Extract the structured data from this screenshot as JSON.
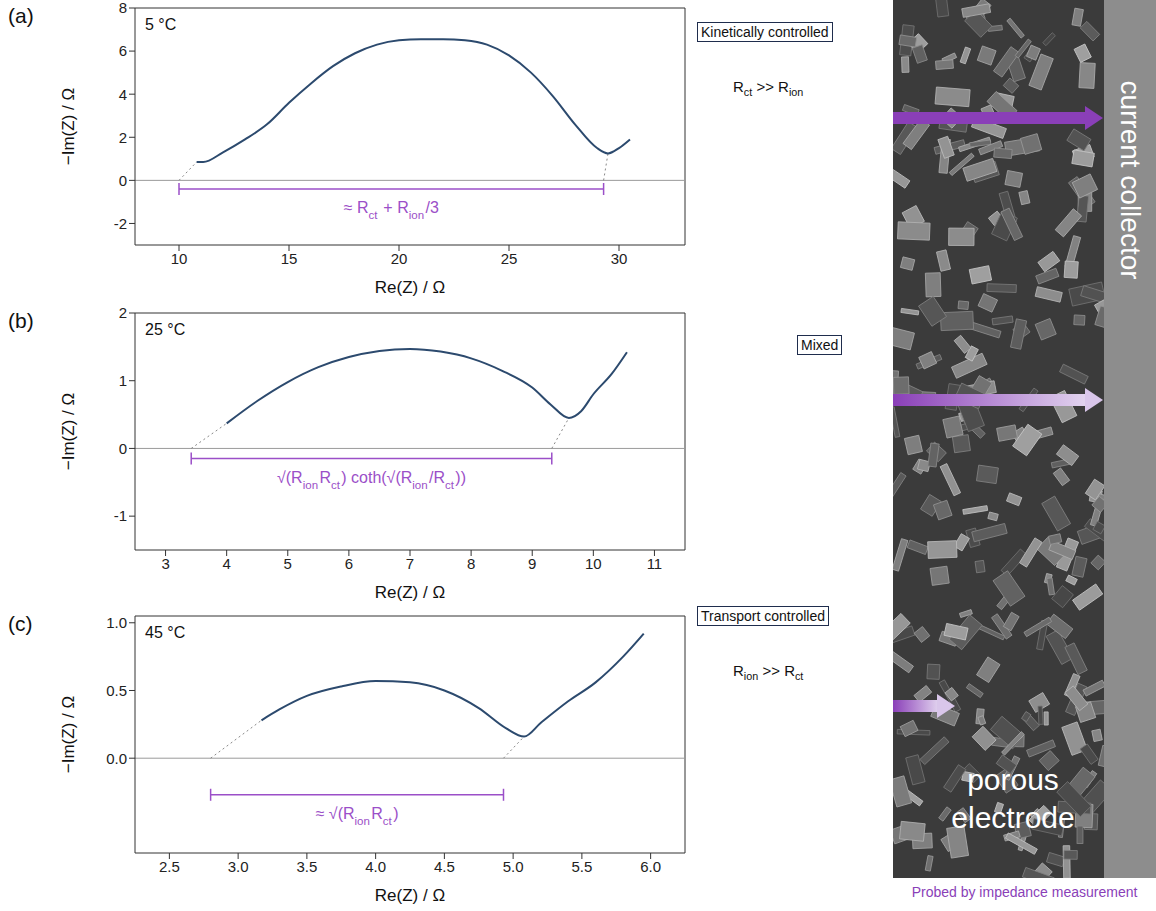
{
  "chart_data": [
    {
      "type": "line",
      "panel": "(a)",
      "annotation": "5 °C",
      "regime": "Kinetically controlled",
      "condition": "Rct >> Rion",
      "x_label": "Re(Z) / Ω",
      "y_label": "−Im(Z) / Ω",
      "color": "#2c4a6e",
      "x": [
        10.8,
        11.1,
        12,
        13,
        14,
        15,
        16,
        17,
        18,
        19,
        20,
        21,
        22,
        23,
        24,
        25,
        26,
        27,
        28,
        29,
        29.5,
        30,
        30.5
      ],
      "values": [
        0.85,
        0.85,
        1.3,
        1.9,
        2.6,
        3.6,
        4.5,
        5.3,
        5.9,
        6.3,
        6.5,
        6.55,
        6.55,
        6.5,
        6.3,
        5.8,
        5.0,
        3.9,
        2.6,
        1.5,
        1.25,
        1.5,
        1.9
      ],
      "xlim": [
        8,
        33
      ],
      "xticks": [
        10,
        15,
        20,
        25,
        30
      ],
      "ylim": [
        -3,
        8
      ],
      "yticks": [
        -2,
        0,
        2,
        4,
        6,
        8
      ],
      "reference_line": 0,
      "extrapolations": [
        [
          [
            10,
            0
          ],
          [
            10.8,
            0.85
          ]
        ],
        [
          [
            29.3,
            0
          ],
          [
            29.5,
            1.25
          ]
        ]
      ],
      "bracket": {
        "x": [
          10,
          29.3
        ],
        "y": -0.4,
        "label": "≈ Rct + Rion/3",
        "color": "#9b4fc8"
      }
    },
    {
      "type": "line",
      "panel": "(b)",
      "annotation": "25 °C",
      "regime": "Mixed",
      "x_label": "Re(Z) / Ω",
      "y_label": "−Im(Z) / Ω",
      "color": "#2c4a6e",
      "x": [
        4,
        4.5,
        5,
        5.5,
        6,
        6.5,
        7,
        7.5,
        8,
        8.5,
        9,
        9.3,
        9.6,
        9.8,
        10,
        10.3,
        10.55
      ],
      "values": [
        0.37,
        0.7,
        0.98,
        1.2,
        1.35,
        1.44,
        1.47,
        1.43,
        1.33,
        1.15,
        0.9,
        0.65,
        0.45,
        0.55,
        0.8,
        1.1,
        1.42
      ],
      "xlim": [
        2.5,
        11.5
      ],
      "xticks": [
        3,
        4,
        5,
        6,
        7,
        8,
        9,
        10,
        11
      ],
      "ylim": [
        -1.5,
        2
      ],
      "yticks": [
        -1,
        0,
        1,
        2
      ],
      "reference_line": 0,
      "extrapolations": [
        [
          [
            3.42,
            0
          ],
          [
            4,
            0.37
          ]
        ],
        [
          [
            9.32,
            0
          ],
          [
            9.6,
            0.45
          ]
        ]
      ],
      "bracket": {
        "x": [
          3.42,
          9.32
        ],
        "y": -0.15,
        "label": "√(RionRct) coth(√(Rion/Rct))",
        "color": "#9b4fc8"
      }
    },
    {
      "type": "line",
      "panel": "(c)",
      "annotation": "45 °C",
      "regime": "Transport controlled",
      "condition": "Rion >> Rct",
      "x_label": "Re(Z) / Ω",
      "y_label": "−Im(Z) / Ω",
      "color": "#2c4a6e",
      "x": [
        3.17,
        3.3,
        3.5,
        3.75,
        4.0,
        4.25,
        4.5,
        4.75,
        4.95,
        5.08,
        5.2,
        5.4,
        5.6,
        5.8,
        5.95
      ],
      "values": [
        0.28,
        0.36,
        0.46,
        0.53,
        0.57,
        0.56,
        0.5,
        0.37,
        0.22,
        0.16,
        0.26,
        0.42,
        0.56,
        0.75,
        0.92
      ],
      "xlim": [
        2.25,
        6.25
      ],
      "xticks": [
        2.5,
        {
          "value": 3,
          "label": "3.0"
        },
        3.5,
        {
          "value": 4,
          "label": "4.0"
        },
        4.5,
        {
          "value": 5,
          "label": "5.0"
        },
        5.5,
        {
          "value": 6,
          "label": "6.0"
        }
      ],
      "ylim": [
        -0.7,
        1.05
      ],
      "yticks": [
        {
          "value": 0,
          "label": "0.0"
        },
        0.5,
        {
          "value": 1,
          "label": "1.0"
        }
      ],
      "reference_line": 0,
      "extrapolations": [
        [
          [
            2.8,
            0
          ],
          [
            3.17,
            0.28
          ]
        ],
        [
          [
            4.93,
            0
          ],
          [
            5.08,
            0.16
          ]
        ]
      ],
      "bracket": {
        "x": [
          2.8,
          4.93
        ],
        "y": -0.27,
        "label": "≈ √(RionRct)",
        "color": "#9b4fc8"
      }
    }
  ],
  "sem_panel": {
    "current_collector": "current collector",
    "electrode": "porous electrode",
    "caption": "Probed by impedance measurement"
  }
}
